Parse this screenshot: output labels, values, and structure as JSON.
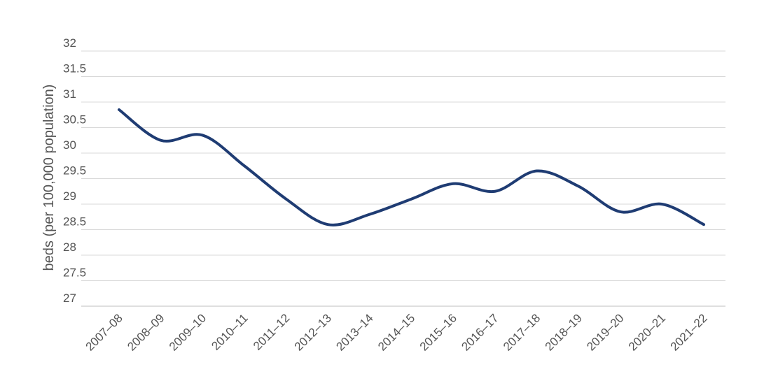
{
  "chart_data": {
    "type": "line",
    "title": "",
    "xlabel": "",
    "ylabel": "beds (per 100,000 population)",
    "ylim": [
      27,
      32
    ],
    "yticks": [
      "27",
      "27.5",
      "28",
      "28.5",
      "29",
      "29.5",
      "30",
      "30.5",
      "31",
      "31.5",
      "32"
    ],
    "categories": [
      "2007–08",
      "2008–09",
      "2009–10",
      "2010–11",
      "2011–12",
      "2012–13",
      "2013–14",
      "2014–15",
      "2015–16",
      "2016–17",
      "2017–18",
      "2018–19",
      "2019–20",
      "2020–21",
      "2021–22"
    ],
    "series": [
      {
        "values": [
          30.85,
          30.25,
          30.35,
          29.75,
          29.1,
          28.6,
          28.8,
          29.1,
          29.4,
          29.25,
          29.65,
          29.35,
          28.85,
          29.0,
          28.6
        ]
      }
    ],
    "grid": true,
    "legend": "none",
    "colors": {
      "series": "#1f3c73",
      "grid": "#d9d9d9",
      "text": "#555555"
    }
  }
}
